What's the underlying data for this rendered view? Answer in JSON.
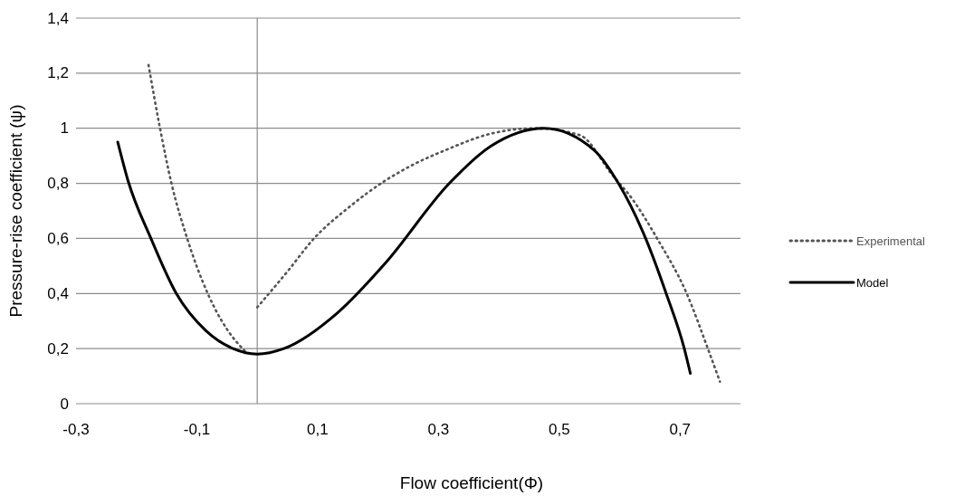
{
  "chart_data": {
    "type": "line",
    "xlabel": "Flow coefficient(Φ)",
    "ylabel": "Pressure-rise coefficient (ψ)",
    "xlim": [
      -0.3,
      0.8
    ],
    "xticks": [
      {
        "value": -0.3,
        "label": "-0,3"
      },
      {
        "value": -0.1,
        "label": "-0,1"
      },
      {
        "value": 0.1,
        "label": "0,1"
      },
      {
        "value": 0.3,
        "label": "0,3"
      },
      {
        "value": 0.5,
        "label": "0,5"
      },
      {
        "value": 0.7,
        "label": "0,7"
      }
    ],
    "ylim": [
      0,
      1.4
    ],
    "yticks": [
      {
        "value": 0,
        "label": "0"
      },
      {
        "value": 0.2,
        "label": "0,2"
      },
      {
        "value": 0.4,
        "label": "0,4"
      },
      {
        "value": 0.6,
        "label": "0,6"
      },
      {
        "value": 0.8,
        "label": "0,8"
      },
      {
        "value": 1,
        "label": "1"
      },
      {
        "value": 1.2,
        "label": "1,2"
      },
      {
        "value": 1.4,
        "label": "1,4"
      }
    ],
    "grid": "y",
    "legend": "right",
    "marker": "none",
    "series": [
      {
        "name": "Experimental",
        "color": "#555555",
        "line_style": "dotted",
        "x": [
          -0.18,
          -0.161,
          -0.142,
          -0.116,
          -0.082,
          -0.05,
          -0.02,
          -0.01,
          0,
          0.05,
          0.094,
          0.15,
          0.212,
          0.26,
          0.311,
          0.386,
          0.46,
          0.534,
          0.588,
          0.622,
          0.662,
          0.711,
          0.746,
          0.766
        ],
        "values": [
          1.23,
          1.0,
          0.8,
          0.6,
          0.4,
          0.27,
          0.19,
          null,
          0.35,
          0.48,
          0.6,
          0.71,
          0.81,
          0.87,
          0.92,
          0.98,
          1.0,
          0.975,
          0.83,
          0.74,
          0.6,
          0.4,
          0.2,
          0.08
        ]
      },
      {
        "name": "Model",
        "color": "#000000",
        "line_style": "solid",
        "x": [
          -0.231,
          -0.214,
          -0.176,
          -0.134,
          -0.085,
          -0.04,
          0,
          0.044,
          0.133,
          0.212,
          0.318,
          0.386,
          0.475,
          0.558,
          0.598,
          0.643,
          0.677,
          0.707,
          0.717
        ],
        "values": [
          0.95,
          0.81,
          0.6,
          0.4,
          0.265,
          0.2,
          0.18,
          0.2,
          0.33,
          0.51,
          0.8,
          0.934,
          1.0,
          0.92,
          0.8,
          0.6,
          0.4,
          0.2,
          0.11
        ]
      }
    ]
  }
}
